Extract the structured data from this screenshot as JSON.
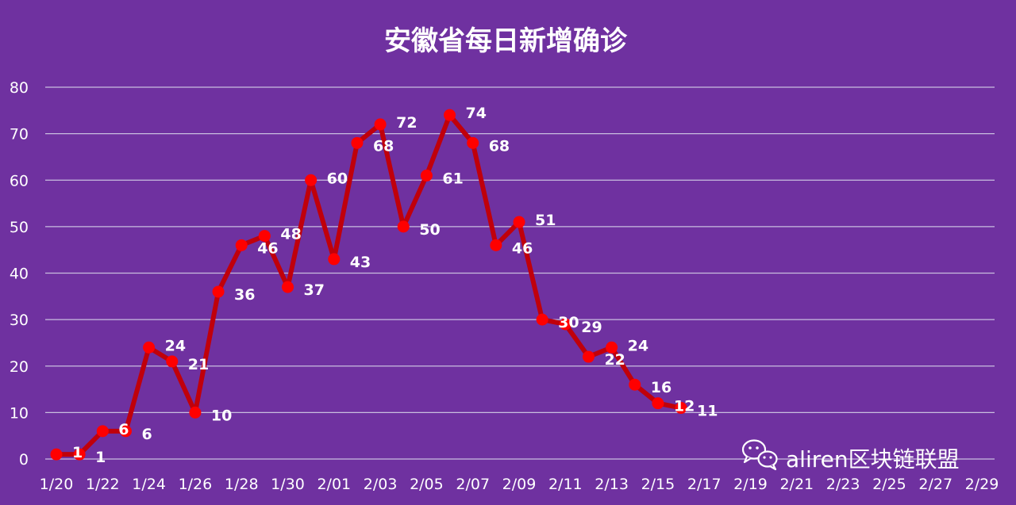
{
  "colors": {
    "background": "#6f31a0",
    "line": "#c0000b",
    "marker": "#ff0000",
    "text": "#ffffff",
    "grid": "#c9bedf"
  },
  "chart_data": {
    "type": "line",
    "title": "安徽省每日新增确诊",
    "xlabel": "",
    "ylabel": "",
    "ylim": [
      0,
      80
    ],
    "yticks": [
      "0",
      "10",
      "20",
      "30",
      "40",
      "50",
      "60",
      "70",
      "80"
    ],
    "xticks": [
      "1/20",
      "1/22",
      "1/24",
      "1/26",
      "1/28",
      "1/30",
      "2/01",
      "2/03",
      "2/05",
      "2/07",
      "2/09",
      "2/11",
      "2/13",
      "2/15",
      "2/17",
      "2/19",
      "2/21",
      "2/23",
      "2/25",
      "2/27",
      "2/29"
    ],
    "grid": true,
    "legend": "none",
    "series": [
      {
        "x": [
          "1/20",
          "1/21",
          "1/22",
          "1/23",
          "1/24",
          "1/25",
          "1/26",
          "1/27",
          "1/28",
          "1/29",
          "1/30",
          "1/31",
          "2/01",
          "2/02",
          "2/03",
          "2/04",
          "2/05",
          "2/06",
          "2/07",
          "2/08",
          "2/09",
          "2/10",
          "2/11",
          "2/12",
          "2/13",
          "2/14",
          "2/15",
          "2/16"
        ],
        "values": [
          1,
          1,
          6,
          6,
          24,
          21,
          10,
          36,
          46,
          48,
          37,
          60,
          43,
          68,
          72,
          50,
          61,
          74,
          68,
          46,
          51,
          30,
          29,
          22,
          24,
          16,
          12,
          11
        ]
      }
    ]
  },
  "watermark": {
    "icon": "wechat-icon",
    "text": "aliren区块链联盟"
  }
}
